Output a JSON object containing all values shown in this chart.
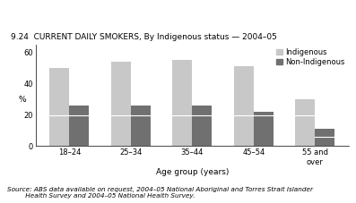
{
  "title": "9.24  CURRENT DAILY SMOKERS, By Indigenous status — 2004–05",
  "categories": [
    "18–24",
    "25–34",
    "35–44",
    "45–54",
    "55 and\nover"
  ],
  "indigenous": [
    50,
    54,
    55,
    51,
    30
  ],
  "non_indigenous": [
    26,
    26,
    26,
    22,
    11
  ],
  "indigenous_lower": [
    20,
    20,
    20,
    20,
    20
  ],
  "non_indigenous_lower": [
    20,
    20,
    20,
    20,
    6
  ],
  "indigenous_color": "#c8c8c8",
  "non_indigenous_color": "#707070",
  "xlabel": "Age group (years)",
  "ylabel": "%",
  "ylim": [
    0,
    65
  ],
  "yticks": [
    0,
    20,
    40,
    60
  ],
  "legend_labels": [
    "Indigenous",
    "Non-Indigenous"
  ],
  "source_line1": "Source: ABS data available on request, 2004–05 National Aboriginal and Torres Strait Islander",
  "source_line2": "         Health Survey and 2004–05 National Health Survey.",
  "bar_width": 0.32,
  "title_fontsize": 6.5,
  "tick_fontsize": 6.0,
  "label_fontsize": 6.5,
  "legend_fontsize": 6.0,
  "source_fontsize": 5.2,
  "background_color": "#ffffff"
}
